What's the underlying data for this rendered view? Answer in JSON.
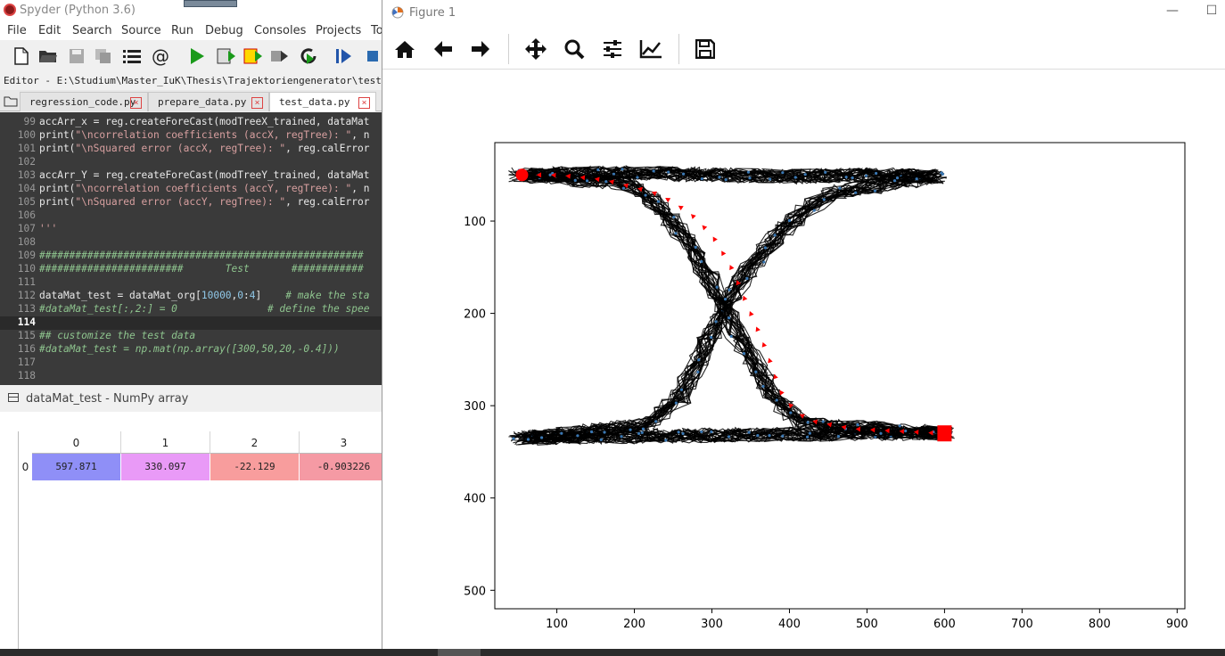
{
  "spyder": {
    "title": "Spyder (Python 3.6)",
    "menu": [
      "File",
      "Edit",
      "Search",
      "Source",
      "Run",
      "Debug",
      "Consoles",
      "Projects",
      "To"
    ],
    "editor_path": "Editor - E:\\Studium\\Master_IuK\\Thesis\\Trajektoriengenerator\\test\\Trajec",
    "tabs": [
      {
        "label": "regression_code.py",
        "active": false
      },
      {
        "label": "prepare_data.py",
        "active": false
      },
      {
        "label": "test_data.py",
        "active": true
      }
    ],
    "code_lines": [
      {
        "n": "99",
        "text": "accArr_x = reg.createForeCast(modTreeX_trained, dataMat"
      },
      {
        "n": "100",
        "text": "print(\"\\ncorrelation coefficients (accX, regTree): \", n"
      },
      {
        "n": "101",
        "text": "print(\"\\nSquared error (accX, regTree): \", reg.calError"
      },
      {
        "n": "102",
        "text": ""
      },
      {
        "n": "103",
        "text": "accArr_Y = reg.createForeCast(modTreeY_trained, dataMat"
      },
      {
        "n": "104",
        "text": "print(\"\\ncorrelation coefficients (accY, regTree): \", n"
      },
      {
        "n": "105",
        "text": "print(\"\\nSquared error (accY, regTree): \", reg.calError"
      },
      {
        "n": "106",
        "text": ""
      },
      {
        "n": "107",
        "text": "'''"
      },
      {
        "n": "108",
        "text": ""
      },
      {
        "n": "109",
        "text": "######################################################"
      },
      {
        "n": "110",
        "text": "########################       Test       ############"
      },
      {
        "n": "111",
        "text": ""
      },
      {
        "n": "112",
        "text": "dataMat_test = dataMat_org[10000,0:4]    # make the sta"
      },
      {
        "n": "113",
        "text": "#dataMat_test[:,2:] = 0               # define the spee"
      },
      {
        "n": "114",
        "text": ""
      },
      {
        "n": "115",
        "text": "## customize the test data"
      },
      {
        "n": "116",
        "text": "#dataMat_test = np.mat(np.array([300,50,20,-0.4]))"
      },
      {
        "n": "117",
        "text": ""
      },
      {
        "n": "118",
        "text": ""
      }
    ],
    "current_line": "114",
    "numpy_title": "dataMat_test - NumPy array",
    "numpy": {
      "columns": [
        "0",
        "1",
        "2",
        "3"
      ],
      "row_index": "0",
      "values": [
        "597.871",
        "330.097",
        "-22.129",
        "-0.903226"
      ],
      "colors": [
        "#8f8ff7",
        "#e99af7",
        "#f89d9d",
        "#f59aa4"
      ]
    }
  },
  "figure": {
    "title": "Figure 1",
    "toolbar": [
      "home-icon",
      "back-icon",
      "forward-icon",
      "pan-icon",
      "zoom-icon",
      "subplots-icon",
      "axes-edit-icon",
      "save-icon"
    ],
    "chart_data": {
      "type": "line",
      "title": "",
      "xlabel": "",
      "ylabel": "",
      "xticks": [
        100,
        200,
        300,
        400,
        500,
        600,
        700,
        800,
        900
      ],
      "yticks": [
        100,
        200,
        300,
        400,
        500
      ],
      "xlim": [
        20,
        910
      ],
      "ylim": [
        520,
        15
      ],
      "y_inverted": true,
      "grid": false,
      "series": [
        {
          "style": "black quiver arrows (training trajectories)",
          "color": "#000000",
          "paths": [
            [
              [
                50,
                50
              ],
              [
                200,
                48
              ],
              [
                300,
                50
              ],
              [
                400,
                52
              ],
              [
                500,
                50
              ],
              [
                590,
                52
              ]
            ],
            [
              [
                50,
                335
              ],
              [
                200,
                333
              ],
              [
                300,
                332
              ],
              [
                400,
                331
              ],
              [
                500,
                330
              ],
              [
                600,
                330
              ]
            ],
            [
              [
                590,
                52
              ],
              [
                450,
                70
              ],
              [
                390,
                110
              ],
              [
                340,
                160
              ],
              [
                300,
                220
              ],
              [
                260,
                290
              ],
              [
                220,
                320
              ],
              [
                60,
                335
              ]
            ],
            [
              [
                60,
                50
              ],
              [
                200,
                60
              ],
              [
                250,
                100
              ],
              [
                290,
                150
              ],
              [
                330,
                220
              ],
              [
                380,
                290
              ],
              [
                420,
                320
              ],
              [
                600,
                330
              ]
            ]
          ]
        },
        {
          "style": "red test trajectory",
          "color": "#ff0000",
          "points": [
            [
              597.871,
              330.097
            ],
            [
              480,
              325
            ],
            [
              420,
              315
            ],
            [
              390,
              290
            ],
            [
              370,
              240
            ],
            [
              345,
              190
            ],
            [
              325,
              150
            ],
            [
              300,
              115
            ],
            [
              270,
              90
            ],
            [
              230,
              70
            ],
            [
              160,
              55
            ],
            [
              100,
              50
            ],
            [
              55,
              50
            ]
          ]
        }
      ],
      "markers": [
        {
          "shape": "square",
          "color": "#ff0000",
          "x": 600,
          "y": 330
        },
        {
          "shape": "circle",
          "color": "#ff0000",
          "x": 55,
          "y": 50
        }
      ]
    }
  }
}
